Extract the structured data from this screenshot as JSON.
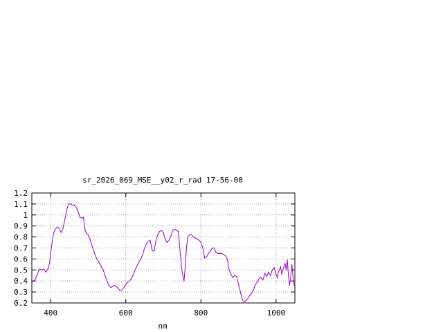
{
  "chart_data": {
    "type": "line",
    "title": "sr_2026_069_MSE__y02_r_rad 17-56-00",
    "xlabel": "nm",
    "ylabel": "",
    "xlim": [
      350,
      1050
    ],
    "ylim": [
      0.2,
      1.2
    ],
    "grid": true,
    "line_color": "#9400d3",
    "x_ticks": [
      400,
      600,
      800,
      1000
    ],
    "x_tick_labels": [
      "400",
      "600",
      "800",
      "1000"
    ],
    "y_ticks": [
      0.2,
      0.3,
      0.4,
      0.5,
      0.6,
      0.7,
      0.8,
      0.9,
      1.0,
      1.1,
      1.2
    ],
    "y_tick_labels": [
      "0.2",
      "0.3",
      "0.4",
      "0.5",
      "0.6",
      "0.7",
      "0.8",
      "0.9",
      "1",
      "1.1",
      "1.2"
    ],
    "series": [
      {
        "x": [
          350,
          358,
          365,
          370,
          375,
          382,
          387,
          393,
          397,
          402,
          407,
          412,
          418,
          422,
          428,
          433,
          438,
          443,
          448,
          453,
          458,
          463,
          468,
          473,
          478,
          483,
          487,
          492,
          496,
          500,
          505,
          510,
          515,
          520,
          525,
          530,
          535,
          540,
          545,
          550,
          555,
          560,
          565,
          570,
          575,
          580,
          585,
          590,
          595,
          600,
          605,
          610,
          615,
          620,
          625,
          630,
          635,
          640,
          645,
          650,
          655,
          660,
          665,
          670,
          675,
          680,
          685,
          690,
          695,
          700,
          705,
          710,
          715,
          720,
          725,
          730,
          735,
          740,
          745,
          750,
          755,
          758,
          762,
          765,
          770,
          775,
          780,
          785,
          790,
          795,
          800,
          805,
          810,
          815,
          820,
          825,
          830,
          835,
          840,
          845,
          850,
          855,
          860,
          865,
          870,
          875,
          880,
          885,
          890,
          895,
          900,
          905,
          910,
          915,
          920,
          925,
          930,
          935,
          940,
          945,
          950,
          955,
          960,
          965,
          970,
          975,
          980,
          985,
          990,
          995,
          1000,
          1003,
          1006,
          1009,
          1012,
          1015,
          1018,
          1021,
          1024,
          1027,
          1030,
          1033,
          1036,
          1039,
          1042,
          1045,
          1048
        ],
        "y": [
          0.39,
          0.41,
          0.46,
          0.51,
          0.5,
          0.51,
          0.48,
          0.51,
          0.56,
          0.7,
          0.82,
          0.87,
          0.89,
          0.88,
          0.84,
          0.88,
          0.96,
          1.05,
          1.1,
          1.1,
          1.09,
          1.09,
          1.07,
          1.03,
          0.98,
          0.97,
          0.98,
          0.86,
          0.83,
          0.82,
          0.78,
          0.72,
          0.67,
          0.62,
          0.59,
          0.56,
          0.53,
          0.5,
          0.45,
          0.4,
          0.36,
          0.34,
          0.35,
          0.36,
          0.35,
          0.33,
          0.31,
          0.32,
          0.34,
          0.37,
          0.39,
          0.4,
          0.42,
          0.46,
          0.5,
          0.54,
          0.57,
          0.6,
          0.64,
          0.7,
          0.74,
          0.76,
          0.77,
          0.68,
          0.67,
          0.76,
          0.82,
          0.85,
          0.86,
          0.84,
          0.78,
          0.75,
          0.77,
          0.81,
          0.86,
          0.87,
          0.86,
          0.85,
          0.65,
          0.48,
          0.4,
          0.52,
          0.72,
          0.8,
          0.82,
          0.82,
          0.8,
          0.79,
          0.78,
          0.77,
          0.75,
          0.7,
          0.61,
          0.62,
          0.65,
          0.67,
          0.7,
          0.7,
          0.66,
          0.65,
          0.65,
          0.65,
          0.64,
          0.63,
          0.6,
          0.5,
          0.46,
          0.43,
          0.45,
          0.44,
          0.37,
          0.3,
          0.23,
          0.21,
          0.22,
          0.24,
          0.27,
          0.29,
          0.32,
          0.37,
          0.39,
          0.42,
          0.43,
          0.41,
          0.47,
          0.44,
          0.48,
          0.45,
          0.5,
          0.52,
          0.46,
          0.43,
          0.48,
          0.5,
          0.53,
          0.46,
          0.5,
          0.53,
          0.56,
          0.5,
          0.59,
          0.44,
          0.36,
          0.44,
          0.55,
          0.44,
          0.36
        ]
      }
    ]
  }
}
